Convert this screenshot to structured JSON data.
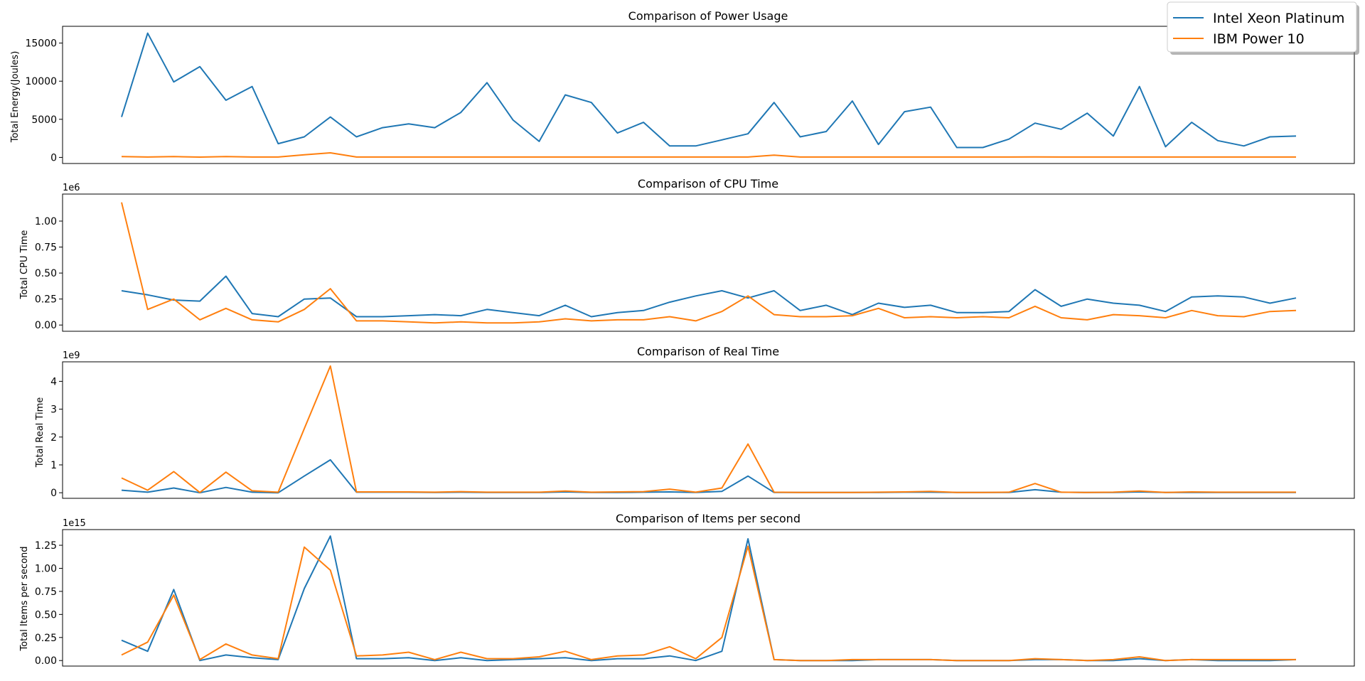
{
  "legend": {
    "placement": "top-right",
    "entries": [
      {
        "label": "Intel Xeon Platinum",
        "color": "#1f77b4"
      },
      {
        "label": "IBM Power 10",
        "color": "#ff7f0e"
      }
    ]
  },
  "chart_data": [
    {
      "type": "line",
      "title": "Comparison of Power Usage",
      "ylabel": "Total Energy(Joules)",
      "xlabel": "",
      "scale_label": "",
      "ylim": [
        -800,
        17200
      ],
      "yticks": [
        0,
        5000,
        10000,
        15000
      ],
      "ytick_labels": [
        "0",
        "5000",
        "10000",
        "15000"
      ],
      "x_count": 46,
      "series": [
        {
          "name": "Intel Xeon Platinum",
          "color": "#1f77b4",
          "values": [
            5300,
            16300,
            9900,
            11900,
            7500,
            9300,
            1800,
            2700,
            5300,
            2700,
            3900,
            4400,
            3900,
            5900,
            9800,
            4900,
            2100,
            8200,
            7200,
            3200,
            4600,
            1500,
            1500,
            2300,
            3100,
            7200,
            2700,
            3400,
            7400,
            1700,
            6000,
            6600,
            1300,
            1300,
            2400,
            4500,
            3700,
            5800,
            2800,
            9300,
            1400,
            4600,
            2200,
            1500,
            2700,
            2800
          ]
        },
        {
          "name": "IBM Power 10",
          "color": "#ff7f0e",
          "values": [
            100,
            50,
            100,
            40,
            100,
            50,
            50,
            350,
            600,
            50,
            50,
            50,
            50,
            50,
            50,
            50,
            50,
            50,
            50,
            50,
            50,
            50,
            50,
            50,
            50,
            300,
            50,
            50,
            50,
            50,
            50,
            50,
            50,
            50,
            50,
            70,
            50,
            50,
            50,
            50,
            50,
            50,
            50,
            50,
            50,
            50
          ]
        }
      ]
    },
    {
      "type": "line",
      "title": "Comparison of CPU Time",
      "ylabel": "Total CPU Time",
      "xlabel": "",
      "scale_label": "1e6",
      "ylim": [
        -0.06,
        1.26
      ],
      "yticks": [
        0,
        0.25,
        0.5,
        0.75,
        1.0
      ],
      "ytick_labels": [
        "0.00",
        "0.25",
        "0.50",
        "0.75",
        "1.00"
      ],
      "x_count": 46,
      "series": [
        {
          "name": "Intel Xeon Platinum",
          "color": "#1f77b4",
          "values": [
            0.33,
            0.29,
            0.24,
            0.23,
            0.47,
            0.11,
            0.08,
            0.25,
            0.26,
            0.08,
            0.08,
            0.09,
            0.1,
            0.09,
            0.15,
            0.12,
            0.09,
            0.19,
            0.08,
            0.12,
            0.14,
            0.22,
            0.28,
            0.33,
            0.26,
            0.33,
            0.14,
            0.19,
            0.1,
            0.21,
            0.17,
            0.19,
            0.12,
            0.12,
            0.13,
            0.34,
            0.18,
            0.25,
            0.21,
            0.19,
            0.13,
            0.27,
            0.28,
            0.27,
            0.21,
            0.26
          ]
        },
        {
          "name": "IBM Power 10",
          "color": "#ff7f0e",
          "values": [
            1.18,
            0.15,
            0.25,
            0.05,
            0.16,
            0.05,
            0.03,
            0.15,
            0.35,
            0.04,
            0.04,
            0.03,
            0.02,
            0.03,
            0.02,
            0.02,
            0.03,
            0.06,
            0.04,
            0.05,
            0.05,
            0.08,
            0.04,
            0.13,
            0.28,
            0.1,
            0.08,
            0.08,
            0.09,
            0.16,
            0.07,
            0.08,
            0.07,
            0.08,
            0.07,
            0.18,
            0.07,
            0.05,
            0.1,
            0.09,
            0.07,
            0.14,
            0.09,
            0.08,
            0.13,
            0.14
          ]
        }
      ]
    },
    {
      "type": "line",
      "title": "Comparison of Real Time",
      "ylabel": "Total Real Time",
      "xlabel": "",
      "scale_label": "1e9",
      "ylim": [
        -0.2,
        4.7
      ],
      "yticks": [
        0,
        1,
        2,
        3,
        4
      ],
      "ytick_labels": [
        "0",
        "1",
        "2",
        "3",
        "4"
      ],
      "x_count": 46,
      "series": [
        {
          "name": "Intel Xeon Platinum",
          "color": "#1f77b4",
          "values": [
            0.09,
            0.02,
            0.17,
            0.0,
            0.19,
            0.02,
            0.0,
            0.6,
            1.18,
            0.02,
            0.02,
            0.02,
            0.01,
            0.02,
            0.01,
            0.01,
            0.01,
            0.03,
            0.01,
            0.01,
            0.02,
            0.03,
            0.01,
            0.05,
            0.6,
            0.01,
            0.01,
            0.01,
            0.01,
            0.01,
            0.02,
            0.02,
            0.01,
            0.01,
            0.01,
            0.11,
            0.02,
            0.01,
            0.01,
            0.03,
            0.01,
            0.01,
            0.01,
            0.01,
            0.01,
            0.01
          ]
        },
        {
          "name": "IBM Power 10",
          "color": "#ff7f0e",
          "values": [
            0.53,
            0.09,
            0.76,
            0.01,
            0.74,
            0.07,
            0.02,
            2.3,
            4.55,
            0.03,
            0.03,
            0.03,
            0.02,
            0.04,
            0.02,
            0.02,
            0.02,
            0.06,
            0.02,
            0.03,
            0.04,
            0.13,
            0.02,
            0.17,
            1.75,
            0.02,
            0.01,
            0.01,
            0.01,
            0.02,
            0.03,
            0.05,
            0.01,
            0.01,
            0.02,
            0.33,
            0.02,
            0.01,
            0.02,
            0.06,
            0.01,
            0.03,
            0.02,
            0.02,
            0.02,
            0.02
          ]
        }
      ]
    },
    {
      "type": "line",
      "title": "Comparison of Items per second",
      "ylabel": "Total Items per second",
      "xlabel": "",
      "scale_label": "1e15",
      "ylim": [
        -0.06,
        1.42
      ],
      "yticks": [
        0,
        0.25,
        0.5,
        0.75,
        1.0,
        1.25
      ],
      "ytick_labels": [
        "0.00",
        "0.25",
        "0.50",
        "0.75",
        "1.00",
        "1.25"
      ],
      "x_count": 46,
      "series": [
        {
          "name": "Intel Xeon Platinum",
          "color": "#1f77b4",
          "values": [
            0.22,
            0.1,
            0.77,
            0.0,
            0.06,
            0.03,
            0.01,
            0.78,
            1.35,
            0.02,
            0.02,
            0.03,
            0.0,
            0.03,
            0.0,
            0.01,
            0.02,
            0.03,
            0.0,
            0.02,
            0.02,
            0.05,
            0.0,
            0.1,
            1.32,
            0.01,
            0.0,
            0.0,
            0.0,
            0.01,
            0.01,
            0.01,
            0.0,
            0.0,
            0.0,
            0.01,
            0.01,
            0.0,
            0.0,
            0.02,
            0.0,
            0.01,
            0.0,
            0.0,
            0.0,
            0.01
          ]
        },
        {
          "name": "IBM Power 10",
          "color": "#ff7f0e",
          "values": [
            0.06,
            0.2,
            0.71,
            0.01,
            0.18,
            0.06,
            0.02,
            1.23,
            0.98,
            0.05,
            0.06,
            0.09,
            0.01,
            0.09,
            0.02,
            0.02,
            0.04,
            0.1,
            0.01,
            0.05,
            0.06,
            0.15,
            0.02,
            0.25,
            1.24,
            0.01,
            0.0,
            0.0,
            0.01,
            0.01,
            0.01,
            0.01,
            0.0,
            0.0,
            0.0,
            0.02,
            0.01,
            0.0,
            0.01,
            0.04,
            0.0,
            0.01,
            0.01,
            0.01,
            0.01,
            0.01
          ]
        }
      ]
    }
  ]
}
